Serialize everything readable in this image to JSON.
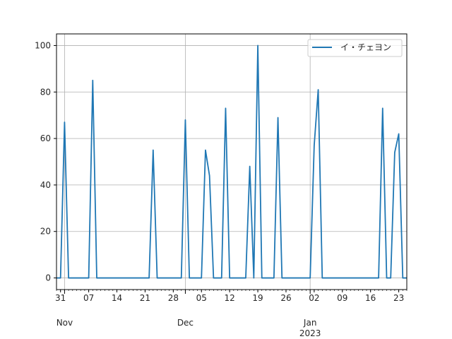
{
  "chart_data": {
    "type": "line",
    "title": "",
    "xlabel": "",
    "ylabel": "",
    "ylim": [
      -5,
      105
    ],
    "xlim": [
      "2022-10-30",
      "2023-01-25"
    ],
    "grid": true,
    "legend_position": "top-right",
    "y_ticks": [
      0,
      20,
      40,
      60,
      80,
      100
    ],
    "x_ticks": [
      {
        "date": "2022-10-31",
        "label": "31"
      },
      {
        "date": "2022-11-07",
        "label": "07"
      },
      {
        "date": "2022-11-14",
        "label": "14"
      },
      {
        "date": "2022-11-21",
        "label": "21"
      },
      {
        "date": "2022-11-28",
        "label": "28"
      },
      {
        "date": "2022-12-05",
        "label": "05"
      },
      {
        "date": "2022-12-12",
        "label": "12"
      },
      {
        "date": "2022-12-19",
        "label": "19"
      },
      {
        "date": "2022-12-26",
        "label": "26"
      },
      {
        "date": "2023-01-02",
        "label": "02"
      },
      {
        "date": "2023-01-09",
        "label": "09"
      },
      {
        "date": "2023-01-16",
        "label": "16"
      },
      {
        "date": "2023-01-23",
        "label": "23"
      }
    ],
    "month_labels": [
      {
        "date": "2022-11-01",
        "label": "Nov"
      },
      {
        "date": "2022-12-01",
        "label": "Dec"
      },
      {
        "date": "2023-01-01",
        "label": "Jan"
      }
    ],
    "year_labels": [
      {
        "date": "2023-01-01",
        "label": "2023"
      }
    ],
    "series": [
      {
        "name": "イ・チェヨン",
        "color": "#1f77b4",
        "points": [
          [
            "2022-10-30",
            0
          ],
          [
            "2022-10-31",
            0
          ],
          [
            "2022-11-01",
            67
          ],
          [
            "2022-11-02",
            0
          ],
          [
            "2022-11-07",
            0
          ],
          [
            "2022-11-08",
            85
          ],
          [
            "2022-11-09",
            0
          ],
          [
            "2022-11-22",
            0
          ],
          [
            "2022-11-23",
            55
          ],
          [
            "2022-11-24",
            0
          ],
          [
            "2022-11-30",
            0
          ],
          [
            "2022-12-01",
            68
          ],
          [
            "2022-12-02",
            0
          ],
          [
            "2022-12-05",
            0
          ],
          [
            "2022-12-06",
            55
          ],
          [
            "2022-12-07",
            44
          ],
          [
            "2022-12-08",
            0
          ],
          [
            "2022-12-10",
            0
          ],
          [
            "2022-12-11",
            73
          ],
          [
            "2022-12-12",
            0
          ],
          [
            "2022-12-16",
            0
          ],
          [
            "2022-12-17",
            48
          ],
          [
            "2022-12-18",
            0
          ],
          [
            "2022-12-19",
            100
          ],
          [
            "2022-12-20",
            0
          ],
          [
            "2022-12-23",
            0
          ],
          [
            "2022-12-24",
            69
          ],
          [
            "2022-12-25",
            0
          ],
          [
            "2023-01-01",
            0
          ],
          [
            "2023-01-02",
            57
          ],
          [
            "2023-01-03",
            81
          ],
          [
            "2023-01-04",
            0
          ],
          [
            "2023-01-18",
            0
          ],
          [
            "2023-01-19",
            73
          ],
          [
            "2023-01-20",
            0
          ],
          [
            "2023-01-21",
            0
          ],
          [
            "2023-01-22",
            54
          ],
          [
            "2023-01-23",
            62
          ],
          [
            "2023-01-24",
            0
          ],
          [
            "2023-01-25",
            0
          ]
        ]
      }
    ]
  }
}
